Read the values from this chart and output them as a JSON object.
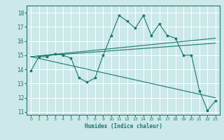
{
  "xlabel": "Humidex (Indice chaleur)",
  "bg_color": "#cce8e8",
  "grid_color": "#ffffff",
  "line_color": "#1a7a6e",
  "xlim": [
    -0.5,
    23.5
  ],
  "ylim": [
    10.8,
    18.5
  ],
  "xticks": [
    0,
    1,
    2,
    3,
    4,
    5,
    6,
    7,
    8,
    9,
    10,
    11,
    12,
    13,
    14,
    15,
    16,
    17,
    18,
    19,
    20,
    21,
    22,
    23
  ],
  "yticks": [
    11,
    12,
    13,
    14,
    15,
    16,
    17,
    18
  ],
  "main_line_x": [
    0,
    1,
    2,
    3,
    4,
    5,
    6,
    7,
    8,
    9,
    10,
    11,
    12,
    13,
    14,
    15,
    16,
    17,
    18,
    19,
    20,
    21,
    22,
    23
  ],
  "main_line_y": [
    13.9,
    14.9,
    14.9,
    15.1,
    15.0,
    14.8,
    13.4,
    13.1,
    13.4,
    15.0,
    16.4,
    17.8,
    17.4,
    16.9,
    17.8,
    16.4,
    17.2,
    16.4,
    16.2,
    15.0,
    15.0,
    12.5,
    11.1,
    11.8
  ],
  "reg_line1_x": [
    0,
    23
  ],
  "reg_line1_y": [
    14.9,
    16.2
  ],
  "reg_line2_x": [
    0,
    23
  ],
  "reg_line2_y": [
    14.9,
    15.85
  ],
  "reg_line3_x": [
    0,
    23
  ],
  "reg_line3_y": [
    14.9,
    12.0
  ]
}
